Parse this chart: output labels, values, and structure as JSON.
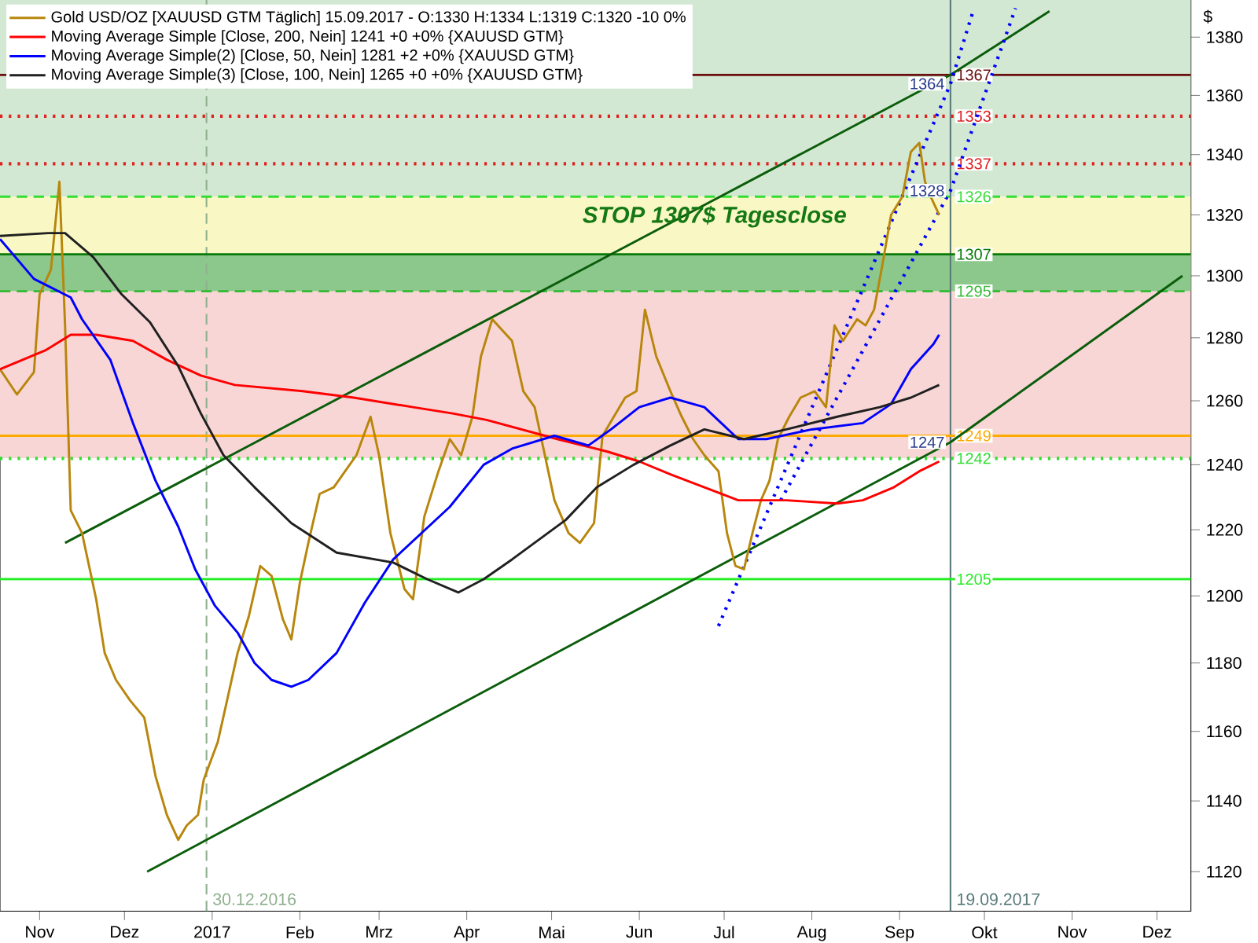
{
  "chart_data": {
    "type": "line",
    "log": "y",
    "ylabel": "$",
    "legend": "top left",
    "xlim": [
      "2016-10-18",
      "2017-12-13"
    ],
    "ylim": [
      1109,
      1393
    ],
    "xticks": [
      {
        "value": "2016-11-01",
        "label": "Nov"
      },
      {
        "value": "2016-12-01",
        "label": "Dez"
      },
      {
        "value": "2017-01-01",
        "label": "2017"
      },
      {
        "value": "2017-02-01",
        "label": "Feb"
      },
      {
        "value": "2017-03-01",
        "label": "Mrz"
      },
      {
        "value": "2017-04-01",
        "label": "Apr"
      },
      {
        "value": "2017-05-01",
        "label": "Mai"
      },
      {
        "value": "2017-06-01",
        "label": "Jun"
      },
      {
        "value": "2017-07-01",
        "label": "Jul"
      },
      {
        "value": "2017-08-01",
        "label": "Aug"
      },
      {
        "value": "2017-09-01",
        "label": "Sep"
      },
      {
        "value": "2017-10-01",
        "label": "Okt"
      },
      {
        "value": "2017-11-01",
        "label": "Nov"
      },
      {
        "value": "2017-12-01",
        "label": "Dez"
      }
    ],
    "yticks": [
      1120,
      1140,
      1160,
      1180,
      1200,
      1220,
      1240,
      1260,
      1280,
      1300,
      1320,
      1340,
      1360,
      1380
    ],
    "series": [
      {
        "color": "#0b5d0b",
        "x": [
          "2016-11-10",
          "2017-09-19",
          "2017-10-24"
        ],
        "values": [
          1216,
          1367,
          1389
        ]
      },
      {
        "color": "#0b5d0b",
        "x": [
          "2016-12-09",
          "2017-09-19",
          "2017-12-10"
        ],
        "values": [
          1120,
          1247,
          1300
        ]
      },
      {
        "color": "#0000ff",
        "line_style": "dotted",
        "x": [
          "2017-06-29",
          "2017-09-19",
          "2017-09-27"
        ],
        "values": [
          1191,
          1364,
          1389
        ]
      },
      {
        "color": "#0000ff",
        "line_style": "dotted",
        "x": [
          "2017-07-21",
          "2017-09-19",
          "2017-10-12"
        ],
        "values": [
          1229,
          1328,
          1390
        ]
      },
      {
        "name": "Gold USD/OZ [XAUUSD GTM  Täglich] 15.09.2017 - O:1330 H:1334 L:1319 C:1320 -10 0%",
        "color": "#b8860b",
        "x": [
          "2016-10-18",
          "2016-10-24",
          "2016-10-30",
          "2016-11-01",
          "2016-11-05",
          "2016-11-08",
          "2016-11-10",
          "2016-11-12",
          "2016-11-16",
          "2016-11-21",
          "2016-11-24",
          "2016-11-28",
          "2016-12-03",
          "2016-12-08",
          "2016-12-12",
          "2016-12-16",
          "2016-12-20",
          "2016-12-23",
          "2016-12-27",
          "2016-12-29",
          "2017-01-03",
          "2017-01-06",
          "2017-01-10",
          "2017-01-14",
          "2017-01-18",
          "2017-01-22",
          "2017-01-26",
          "2017-01-29",
          "2017-02-01",
          "2017-02-04",
          "2017-02-08",
          "2017-02-13",
          "2017-02-17",
          "2017-02-21",
          "2017-02-26",
          "2017-03-01",
          "2017-03-05",
          "2017-03-10",
          "2017-03-13",
          "2017-03-17",
          "2017-03-22",
          "2017-03-26",
          "2017-03-30",
          "2017-04-03",
          "2017-04-06",
          "2017-04-10",
          "2017-04-14",
          "2017-04-17",
          "2017-04-21",
          "2017-04-25",
          "2017-05-02",
          "2017-05-07",
          "2017-05-11",
          "2017-05-16",
          "2017-05-19",
          "2017-05-23",
          "2017-05-27",
          "2017-05-31",
          "2017-06-03",
          "2017-06-07",
          "2017-06-12",
          "2017-06-16",
          "2017-06-20",
          "2017-06-24",
          "2017-06-29",
          "2017-07-02",
          "2017-07-05",
          "2017-07-08",
          "2017-07-11",
          "2017-07-14",
          "2017-07-17",
          "2017-07-20",
          "2017-07-24",
          "2017-07-28",
          "2017-08-02",
          "2017-08-06",
          "2017-08-09",
          "2017-08-12",
          "2017-08-17",
          "2017-08-20",
          "2017-08-23",
          "2017-08-26",
          "2017-08-29",
          "2017-09-02",
          "2017-09-05",
          "2017-09-08",
          "2017-09-10",
          "2017-09-12",
          "2017-09-14",
          "2017-09-15"
        ],
        "values": [
          1270,
          1262,
          1269,
          1294,
          1302,
          1331,
          1284,
          1226,
          1219,
          1199,
          1183,
          1175,
          1169,
          1164,
          1147,
          1136,
          1129,
          1133,
          1136,
          1146,
          1157,
          1168,
          1183,
          1194,
          1209,
          1206,
          1193,
          1187,
          1204,
          1216,
          1231,
          1233,
          1238,
          1243,
          1255,
          1243,
          1219,
          1202,
          1199,
          1224,
          1238,
          1248,
          1243,
          1255,
          1274,
          1286,
          1282,
          1279,
          1263,
          1258,
          1229,
          1219,
          1216,
          1222,
          1249,
          1255,
          1261,
          1263,
          1289,
          1274,
          1263,
          1255,
          1248,
          1243,
          1238,
          1219,
          1209,
          1208,
          1219,
          1229,
          1235,
          1248,
          1255,
          1261,
          1263,
          1258,
          1284,
          1279,
          1286,
          1284,
          1289,
          1304,
          1320,
          1326,
          1341,
          1344,
          1331,
          1326,
          1322,
          1320
        ]
      },
      {
        "name": "Moving Average Simple [Close, 200, Nein] 1241 +0 +0% {XAUUSD GTM}",
        "color": "#ff0000",
        "x": [
          "2016-10-18",
          "2016-11-03",
          "2016-11-12",
          "2016-11-21",
          "2016-12-04",
          "2016-12-16",
          "2016-12-28",
          "2017-01-09",
          "2017-02-02",
          "2017-02-20",
          "2017-03-13",
          "2017-03-27",
          "2017-04-08",
          "2017-05-03",
          "2017-05-21",
          "2017-06-01",
          "2017-06-12",
          "2017-06-24",
          "2017-07-06",
          "2017-07-23",
          "2017-08-10",
          "2017-08-19",
          "2017-08-30",
          "2017-09-08",
          "2017-09-15"
        ],
        "values": [
          1270,
          1276,
          1281,
          1281,
          1279,
          1273,
          1268,
          1265,
          1263,
          1261,
          1258,
          1256,
          1254,
          1248,
          1244,
          1241,
          1237,
          1233,
          1229,
          1229,
          1228,
          1229,
          1233,
          1238,
          1241
        ]
      },
      {
        "name": "Moving Average Simple(2) [Close, 50, Nein] 1281 +2 +0% {XAUUSD GTM}",
        "color": "#0000ff",
        "x": [
          "2016-10-18",
          "2016-10-30",
          "2016-11-12",
          "2016-11-16",
          "2016-11-26",
          "2016-12-04",
          "2016-12-12",
          "2016-12-20",
          "2016-12-26",
          "2017-01-02",
          "2017-01-10",
          "2017-01-16",
          "2017-01-22",
          "2017-01-29",
          "2017-02-04",
          "2017-02-14",
          "2017-02-24",
          "2017-03-06",
          "2017-03-26",
          "2017-04-07",
          "2017-04-17",
          "2017-05-02",
          "2017-05-14",
          "2017-05-22",
          "2017-06-01",
          "2017-06-12",
          "2017-06-24",
          "2017-07-06",
          "2017-07-16",
          "2017-08-01",
          "2017-08-19",
          "2017-08-29",
          "2017-09-05",
          "2017-09-13",
          "2017-09-15"
        ],
        "values": [
          1312,
          1299,
          1293,
          1286,
          1273,
          1253,
          1235,
          1221,
          1208,
          1197,
          1189,
          1180,
          1175,
          1173,
          1175,
          1183,
          1198,
          1211,
          1227,
          1240,
          1245,
          1249,
          1246,
          1251,
          1258,
          1261,
          1258,
          1248,
          1248,
          1251,
          1253,
          1259,
          1270,
          1278,
          1281
        ]
      },
      {
        "name": "Moving Average Simple(3) [Close, 100, Nein] 1265 +0 +0% {XAUUSD GTM}",
        "color": "#202020",
        "x": [
          "2016-10-18",
          "2016-11-04",
          "2016-11-10",
          "2016-11-20",
          "2016-11-30",
          "2016-12-10",
          "2016-12-20",
          "2016-12-28",
          "2017-01-05",
          "2017-01-16",
          "2017-01-29",
          "2017-02-14",
          "2017-03-06",
          "2017-03-18",
          "2017-03-29",
          "2017-04-07",
          "2017-04-17",
          "2017-05-06",
          "2017-05-17",
          "2017-05-30",
          "2017-06-12",
          "2017-06-24",
          "2017-07-08",
          "2017-07-23",
          "2017-08-10",
          "2017-08-25",
          "2017-09-05",
          "2017-09-15"
        ],
        "values": [
          1313,
          1314,
          1314,
          1306,
          1294,
          1285,
          1271,
          1256,
          1243,
          1233,
          1222,
          1213,
          1210,
          1205,
          1201,
          1205,
          1211,
          1223,
          1233,
          1240,
          1246,
          1251,
          1248,
          1251,
          1255,
          1258,
          1261,
          1265
        ]
      }
    ],
    "bands": [
      {
        "axis": "y",
        "from": 1326,
        "to": 1393,
        "color": "#d3e8d3"
      },
      {
        "axis": "y",
        "from": 1295,
        "to": 1326,
        "color": "#f9f8c4"
      },
      {
        "axis": "y",
        "from": 1242,
        "to": 1295,
        "color": "#f8d6d6"
      },
      {
        "axis": "y",
        "from": 1295,
        "to": 1307,
        "color": "#8cc88c"
      }
    ],
    "ref_lines": [
      {
        "axis": "x",
        "value": "2016-12-30",
        "label": "30.12.2016",
        "color": "#8fb08f",
        "line_style": "dashed"
      },
      {
        "axis": "x",
        "value": "2017-09-19",
        "label": "19.09.2017",
        "color": "#5a7a7a",
        "line_style": "solid"
      },
      {
        "axis": "y",
        "value": 1367,
        "label": "1367",
        "color": "#6b1010",
        "line_style": "solid"
      },
      {
        "axis": "y",
        "value": 1353,
        "label": "1353",
        "color": "#e02020",
        "line_style": "dotted"
      },
      {
        "axis": "y",
        "value": 1337,
        "label": "1337",
        "color": "#e02020",
        "line_style": "dotted"
      },
      {
        "axis": "y",
        "value": 1326,
        "label": "1326",
        "color": "#33dd33",
        "line_style": "dashed"
      },
      {
        "axis": "y",
        "value": 1307,
        "label": "1307",
        "color": "#0a7a0a",
        "line_style": "solid"
      },
      {
        "axis": "y",
        "value": 1295,
        "label": "1295",
        "color": "#33bb33",
        "line_style": "dashed"
      },
      {
        "axis": "y",
        "value": 1249,
        "label": "1249",
        "color": "#ffaa00",
        "line_style": "solid"
      },
      {
        "axis": "y",
        "value": 1242,
        "label": "1242",
        "color": "#33dd33",
        "line_style": "dotted"
      },
      {
        "axis": "y",
        "value": 1205,
        "label": "1205",
        "color": "#22ee22",
        "line_style": "solid"
      }
    ],
    "annotations": [
      "STOP 1307$ Tagesclose",
      {
        "text": "1364",
        "x": "2017-09-19",
        "y": 1364
      },
      {
        "text": "1328",
        "x": "2017-09-19",
        "y": 1328
      },
      {
        "text": "1247",
        "x": "2017-09-19",
        "y": 1247
      }
    ]
  }
}
